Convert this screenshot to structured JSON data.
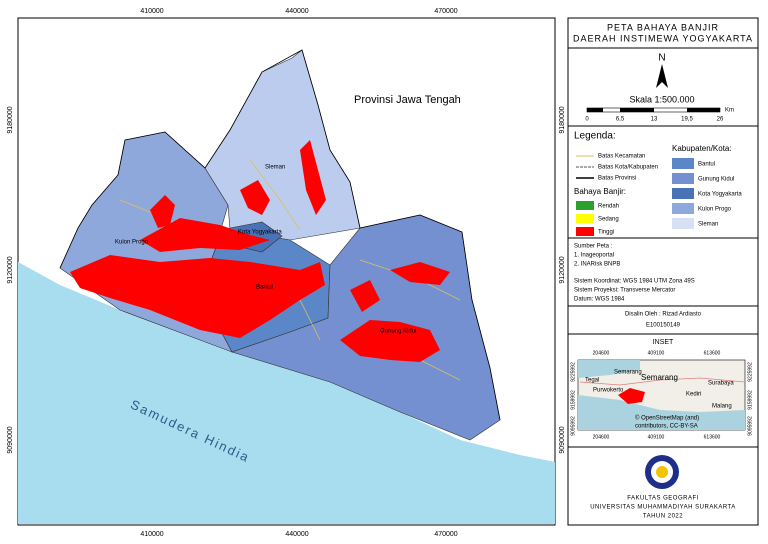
{
  "map": {
    "top_coords": [
      "410000",
      "440000",
      "470000"
    ],
    "bottom_coords": [
      "410000",
      "440000",
      "470000"
    ],
    "left_coords": [
      "9180000",
      "9120000",
      "9090000"
    ],
    "right_coords": [
      "9180000",
      "9120000",
      "9090000"
    ],
    "labels": {
      "province": "Provinsi Jawa Tengah",
      "sea": "Samudera Hindia",
      "sleman": "Sleman",
      "kota": "Kota Yogyakarta",
      "kulon_progo": "Kulon Progo",
      "bantul": "Bantul",
      "gunung_kidul": "Gunung Kidul"
    }
  },
  "title": [
    "PETA BAHAYA BANJIR",
    "DAERAH INSTIMEWA YOGYAKARTA"
  ],
  "north": "N",
  "scale": {
    "label": "Skala 1:500.000",
    "ticks": [
      "0",
      "6,5",
      "13",
      "19,5",
      "26"
    ],
    "unit": "Km"
  },
  "legend": {
    "title": "Legenda:",
    "lines": [
      "Batas Kecamatan",
      "Batas Kota/Kabupaten",
      "Batas Provinsi"
    ],
    "hazard_title": "Bahaya Banjir:",
    "hazard": [
      "Rendah",
      "Sedang",
      "Tinggi"
    ],
    "region_title": "Kabupaten/Kota:",
    "regions": [
      "Bantul",
      "Gunung Kidul",
      "Kota Yogyakarta",
      "Kulon Progo",
      "Sleman"
    ]
  },
  "source": {
    "title": "Sumber Peta :",
    "items": [
      "1. Inageoportal",
      "2. INARisk BNPB"
    ]
  },
  "crs": [
    "Sistem Koordinat: WGS 1984 UTM Zona 49S",
    "Sistem Proyeksi: Transverse Mercator",
    "Datum: WGS 1984"
  ],
  "author": [
    "Disalin Oleh : Rizad Ardiasto",
    "E100150149"
  ],
  "inset": {
    "title": "INSET",
    "x_coords": [
      "204600",
      "409100",
      "613600"
    ],
    "y_coords": [
      "9225992",
      "9159992",
      "9095992"
    ],
    "places": [
      "Tegal",
      "Semarang",
      "Semarang",
      "Surabaya",
      "Purwokerto",
      "Kediri",
      "Malang"
    ],
    "credit": [
      "© OpenStreetMap (and)",
      "contributors, CC-BY-SA"
    ]
  },
  "institution": [
    "FAKULTAS GEOGRAFI",
    "UNIVERSITAS MUHAMMADIYAH SURAKARTA",
    "TAHUN 2022"
  ]
}
